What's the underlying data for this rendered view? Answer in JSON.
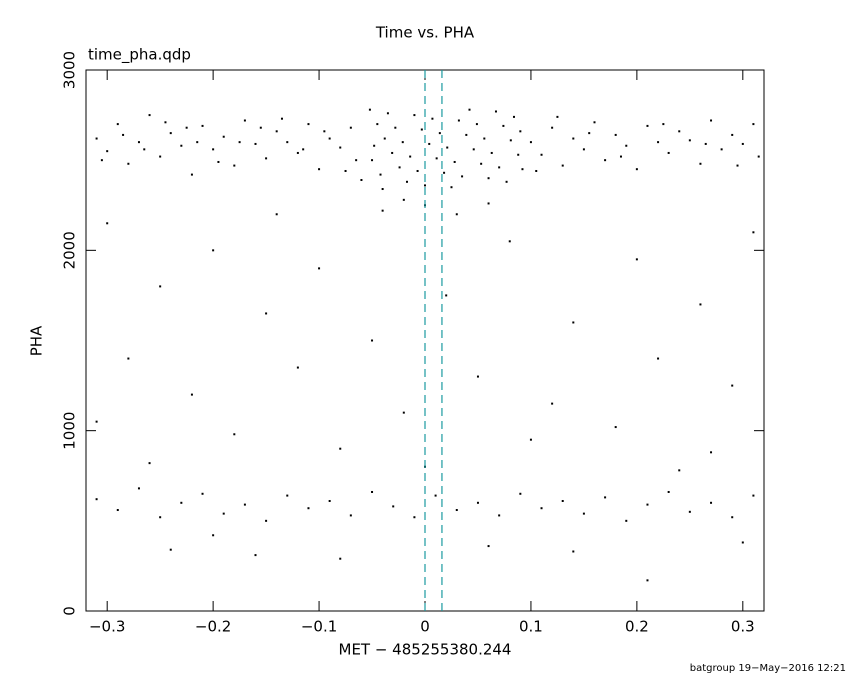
{
  "chart_data": {
    "type": "scatter",
    "title": "Time vs. PHA",
    "subtitle": "time_pha.qdp",
    "x_label": "MET − 485255380.244",
    "y_label": "PHA",
    "footer": "batgroup 19−May−2016 12:21",
    "color": "#000000",
    "xlim": [
      -0.32,
      0.32
    ],
    "ylim": [
      0,
      3000
    ],
    "xticks": [
      {
        "value": -0.3,
        "label": "−0.3"
      },
      {
        "value": -0.2,
        "label": "−0.2"
      },
      {
        "value": -0.1,
        "label": "−0.1"
      },
      0,
      0.1,
      0.2,
      0.3
    ],
    "yticks": [
      0,
      1000,
      2000,
      3000
    ],
    "vlines": [
      0,
      0.016
    ],
    "vline_color": "#1a9aa0",
    "x": [
      -0.31,
      -0.3,
      -0.29,
      -0.28,
      -0.27,
      -0.26,
      -0.25,
      -0.24,
      -0.23,
      -0.22,
      -0.21,
      -0.2,
      -0.19,
      -0.18,
      -0.17,
      -0.16,
      -0.15,
      -0.14,
      -0.13,
      -0.12,
      -0.11,
      -0.1,
      -0.09,
      -0.08,
      -0.07,
      -0.065,
      -0.305,
      -0.285,
      -0.245,
      -0.195,
      -0.155,
      -0.115,
      -0.075,
      -0.215,
      -0.135,
      -0.265,
      -0.225,
      -0.175,
      -0.095,
      -0.06,
      0.1,
      0.11,
      0.12,
      0.13,
      0.14,
      0.15,
      0.16,
      0.17,
      0.18,
      0.19,
      0.2,
      0.21,
      0.22,
      0.23,
      0.24,
      0.25,
      0.26,
      0.27,
      0.28,
      0.29,
      0.3,
      0.31,
      0.315,
      0.105,
      0.125,
      0.155,
      0.185,
      0.225,
      0.265,
      0.295,
      -0.052,
      -0.045,
      -0.038,
      -0.031,
      -0.024,
      -0.017,
      -0.01,
      -0.003,
      0.004,
      0.011,
      0.018,
      0.025,
      0.032,
      0.039,
      0.046,
      0.053,
      0.06,
      0.067,
      0.074,
      0.081,
      0.088,
      0.092,
      -0.05,
      -0.042,
      -0.035,
      -0.028,
      -0.021,
      -0.014,
      -0.007,
      0.0,
      0.007,
      0.014,
      0.021,
      0.028,
      0.035,
      0.042,
      0.049,
      0.056,
      0.063,
      0.07,
      0.077,
      0.084,
      0.09,
      -0.048,
      -0.04,
      0.0,
      0.03,
      -0.02,
      0.06,
      -0.04,
      -0.3,
      -0.25,
      -0.2,
      -0.15,
      -0.1,
      -0.05,
      0.02,
      0.08,
      0.14,
      0.2,
      0.26,
      0.31,
      -0.28,
      -0.22,
      -0.12,
      -0.02,
      0.05,
      0.12,
      0.22,
      0.29,
      -0.31,
      -0.18,
      -0.08,
      0.1,
      0.18,
      0.27,
      -0.26,
      0.0,
      0.24,
      -0.14,
      -0.31,
      -0.29,
      -0.27,
      -0.25,
      -0.23,
      -0.21,
      -0.19,
      -0.17,
      -0.15,
      -0.13,
      -0.11,
      -0.09,
      -0.07,
      -0.05,
      -0.03,
      -0.01,
      0.01,
      0.03,
      0.05,
      0.07,
      0.09,
      0.11,
      0.13,
      0.15,
      0.17,
      0.19,
      0.21,
      0.23,
      0.25,
      0.27,
      0.29,
      0.31,
      -0.24,
      -0.16,
      -0.08,
      0.06,
      0.14,
      0.21,
      0.3,
      -0.2
    ],
    "values": [
      2620,
      2550,
      2700,
      2480,
      2600,
      2750,
      2520,
      2650,
      2580,
      2420,
      2690,
      2560,
      2630,
      2470,
      2720,
      2590,
      2510,
      2660,
      2600,
      2540,
      2700,
      2450,
      2620,
      2570,
      2680,
      2500,
      2500,
      2640,
      2710,
      2490,
      2680,
      2560,
      2440,
      2600,
      2730,
      2560,
      2680,
      2600,
      2660,
      2390,
      2600,
      2530,
      2680,
      2470,
      2620,
      2560,
      2710,
      2500,
      2640,
      2580,
      2450,
      2690,
      2600,
      2540,
      2660,
      2610,
      2480,
      2720,
      2560,
      2640,
      2590,
      2700,
      2520,
      2440,
      2740,
      2650,
      2520,
      2700,
      2590,
      2470,
      2780,
      2700,
      2620,
      2540,
      2460,
      2380,
      2750,
      2670,
      2590,
      2510,
      2430,
      2350,
      2720,
      2640,
      2560,
      2480,
      2400,
      2770,
      2690,
      2610,
      2530,
      2450,
      2500,
      2420,
      2760,
      2680,
      2600,
      2520,
      2440,
      2360,
      2730,
      2650,
      2570,
      2490,
      2410,
      2780,
      2700,
      2620,
      2540,
      2460,
      2380,
      2740,
      2660,
      2580,
      2340,
      2250,
      2200,
      2280,
      2260,
      2220,
      2150,
      1800,
      2000,
      1650,
      1900,
      1500,
      1750,
      2050,
      1600,
      1950,
      1700,
      2100,
      1400,
      1200,
      1350,
      1100,
      1300,
      1150,
      1400,
      1250,
      1050,
      980,
      900,
      950,
      1020,
      880,
      820,
      800,
      780,
      2200,
      620,
      560,
      680,
      520,
      600,
      650,
      540,
      590,
      500,
      640,
      570,
      610,
      530,
      660,
      580,
      520,
      640,
      560,
      600,
      530,
      650,
      570,
      610,
      540,
      630,
      500,
      590,
      660,
      550,
      600,
      520,
      640,
      340,
      310,
      290,
      360,
      330,
      170,
      380,
      420
    ]
  }
}
